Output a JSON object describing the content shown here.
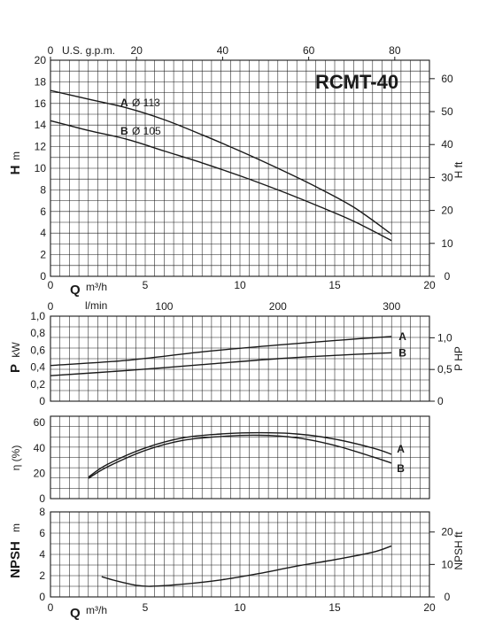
{
  "model": "RCMT-40",
  "chart_data": [
    {
      "type": "line",
      "x_axis": {
        "label": "Q",
        "unit": "m³/h",
        "range": [
          0,
          20
        ],
        "ticks": [
          0,
          5,
          10,
          15,
          20
        ]
      },
      "x_axis_top": {
        "label": "U.S. g.p.m.",
        "range": [
          0,
          88.06
        ],
        "ticks": [
          0,
          20,
          40,
          60,
          80
        ]
      },
      "y_axis": {
        "label": "H",
        "unit": "m",
        "range": [
          0,
          20
        ],
        "ticks": [
          0,
          2,
          4,
          6,
          8,
          10,
          12,
          14,
          16,
          18,
          20
        ]
      },
      "y_axis_right": {
        "label": "H ft",
        "range": [
          0,
          65.6
        ],
        "ticks": [
          0,
          10,
          20,
          30,
          40,
          50,
          60
        ]
      },
      "grid": true,
      "series": [
        {
          "name": "A Ø 113",
          "letter": "A",
          "diameter": "Ø 113",
          "x": [
            0,
            2,
            4,
            6,
            8,
            10,
            12,
            14,
            16,
            18
          ],
          "y": [
            17.2,
            16.4,
            15.6,
            14.5,
            13.1,
            11.6,
            10.0,
            8.3,
            6.4,
            3.9
          ]
        },
        {
          "name": "B Ø 105",
          "letter": "B",
          "diameter": "Ø 105",
          "x": [
            0,
            2,
            4,
            6,
            8,
            10,
            12,
            14,
            16,
            18
          ],
          "y": [
            14.4,
            13.5,
            12.7,
            11.6,
            10.5,
            9.3,
            8.0,
            6.6,
            5.1,
            3.3
          ]
        }
      ]
    },
    {
      "type": "line",
      "x_axis_top": {
        "label": "l/min",
        "range": [
          0,
          333.3
        ],
        "ticks": [
          0,
          100,
          200,
          300
        ]
      },
      "y_axis": {
        "label": "P",
        "unit": "kW",
        "range": [
          0,
          1.0
        ],
        "ticks": [
          "0",
          "0,2",
          "0,4",
          "0,6",
          "0,8",
          "1,0"
        ]
      },
      "y_axis_right": {
        "label": "P HP",
        "range": [
          0,
          1.34
        ],
        "ticks": [
          "0",
          "0,5",
          "1,0"
        ]
      },
      "grid": true,
      "series": [
        {
          "name": "A",
          "x": [
            0,
            4,
            8,
            12,
            16,
            18
          ],
          "y": [
            0.42,
            0.48,
            0.58,
            0.66,
            0.73,
            0.76
          ]
        },
        {
          "name": "B",
          "x": [
            0,
            4,
            8,
            12,
            16,
            18
          ],
          "y": [
            0.3,
            0.36,
            0.43,
            0.5,
            0.55,
            0.57
          ]
        }
      ]
    },
    {
      "type": "line",
      "y_axis": {
        "label": "η",
        "unit": "(%)",
        "range": [
          0,
          65
        ],
        "ticks": [
          0,
          20,
          40,
          60
        ]
      },
      "grid": true,
      "series": [
        {
          "name": "A",
          "x": [
            2,
            3,
            5,
            7,
            9,
            11,
            13,
            15,
            17,
            18
          ],
          "y": [
            17,
            27,
            40,
            48,
            51,
            52,
            51,
            47,
            40,
            35
          ]
        },
        {
          "name": "B",
          "x": [
            2,
            3,
            5,
            7,
            9,
            11,
            13,
            15,
            17,
            18
          ],
          "y": [
            16,
            25,
            38,
            46,
            49,
            50,
            48,
            42,
            33,
            28
          ]
        }
      ]
    },
    {
      "type": "line",
      "x_axis": {
        "label": "Q",
        "unit": "m³/h",
        "range": [
          0,
          20
        ],
        "ticks": [
          0,
          5,
          10,
          15,
          20
        ]
      },
      "y_axis": {
        "label": "NPSH",
        "unit": "m",
        "range": [
          0,
          8
        ],
        "ticks": [
          0,
          2,
          4,
          6,
          8
        ]
      },
      "y_axis_right": {
        "label": "NPSH ft",
        "range": [
          0,
          26.2
        ],
        "ticks": [
          0,
          10,
          20
        ]
      },
      "grid": true,
      "series": [
        {
          "name": "NPSH",
          "x": [
            2.7,
            3.5,
            4.5,
            5.3,
            7,
            9,
            11,
            13,
            15,
            17,
            18
          ],
          "y": [
            1.9,
            1.5,
            1.1,
            1.0,
            1.2,
            1.6,
            2.2,
            2.9,
            3.5,
            4.2,
            4.8
          ]
        }
      ]
    }
  ]
}
